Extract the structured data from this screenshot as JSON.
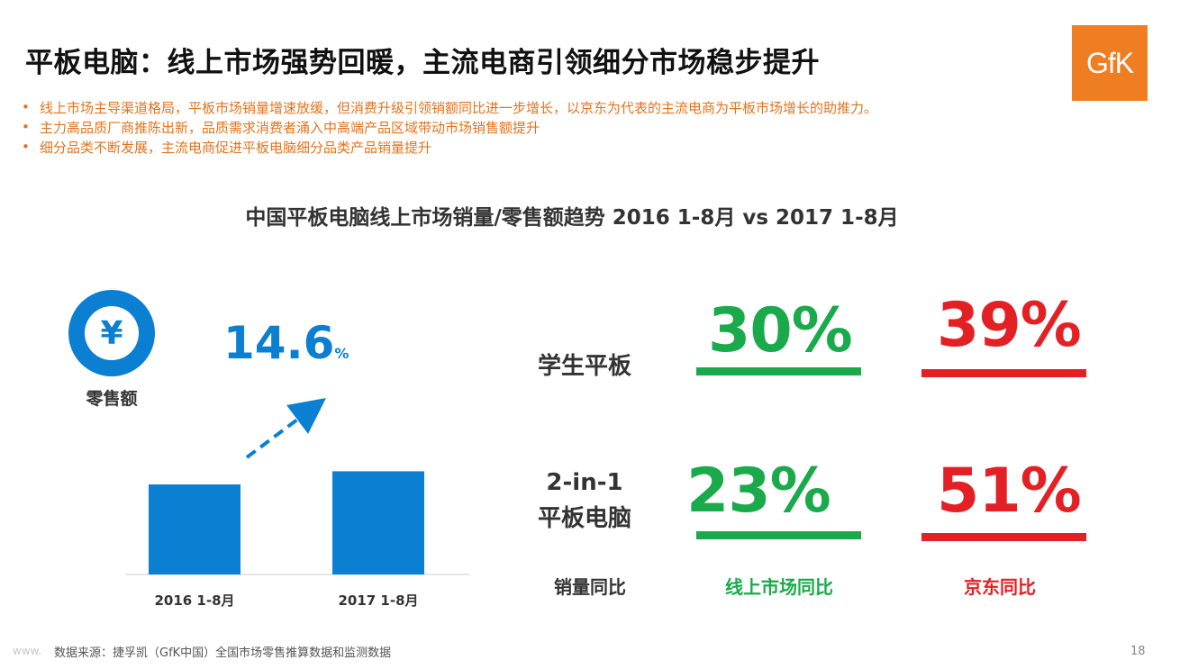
{
  "slide": {
    "title": "平板电脑：线上市场强势回暖，主流电商引领细分市场稳步提升",
    "logo_text": "GfK",
    "bullets": [
      "线上市场主导渠道格局，平板市场销量增速放缓，但消费升级引领销额同比进一步增长，以京东为代表的主流电商为平板市场增长的助推力。",
      "主力高品质厂商推陈出新，品质需求消费者涌入中高端产品区域带动市场销售额提升",
      "细分品类不断发展，主流电商促进平板电脑细分品类产品销量提升"
    ],
    "bullet_marker": "•",
    "chart_title": "中国平板电脑线上市场销量/零售额趋势 2016 1-8月 vs 2017 1-8月",
    "footer_source": "数据来源：捷孚凯（GfK中国）全国市场零售推算数据和监测数据",
    "watermark": "www.",
    "page_number": "18"
  },
  "retail": {
    "icon": "yuan-icon",
    "icon_glyph": "¥",
    "label": "零售额",
    "growth_value": "14.6",
    "growth_unit": "%"
  },
  "chart_data": {
    "type": "bar",
    "categories": [
      "2016 1-8月",
      "2017 1-8月"
    ],
    "values": [
      100,
      114.6
    ],
    "ylim": [
      0,
      140
    ],
    "title": "",
    "xlabel": "",
    "ylabel": "",
    "grid": false,
    "bar_color": "#0b7fd2"
  },
  "yoy": {
    "rows": [
      {
        "label_lines": [
          "学生平板"
        ],
        "online": "30%",
        "jd": "39%"
      },
      {
        "label_lines": [
          "2-in-1",
          "平板电脑"
        ],
        "online": "23%",
        "jd": "51%"
      }
    ],
    "footer_labels": {
      "row_header": "销量同比",
      "online": "线上市场同比",
      "jd": "京东同比"
    },
    "colors": {
      "online": "#1aaa4b",
      "jd": "#e32124"
    }
  }
}
